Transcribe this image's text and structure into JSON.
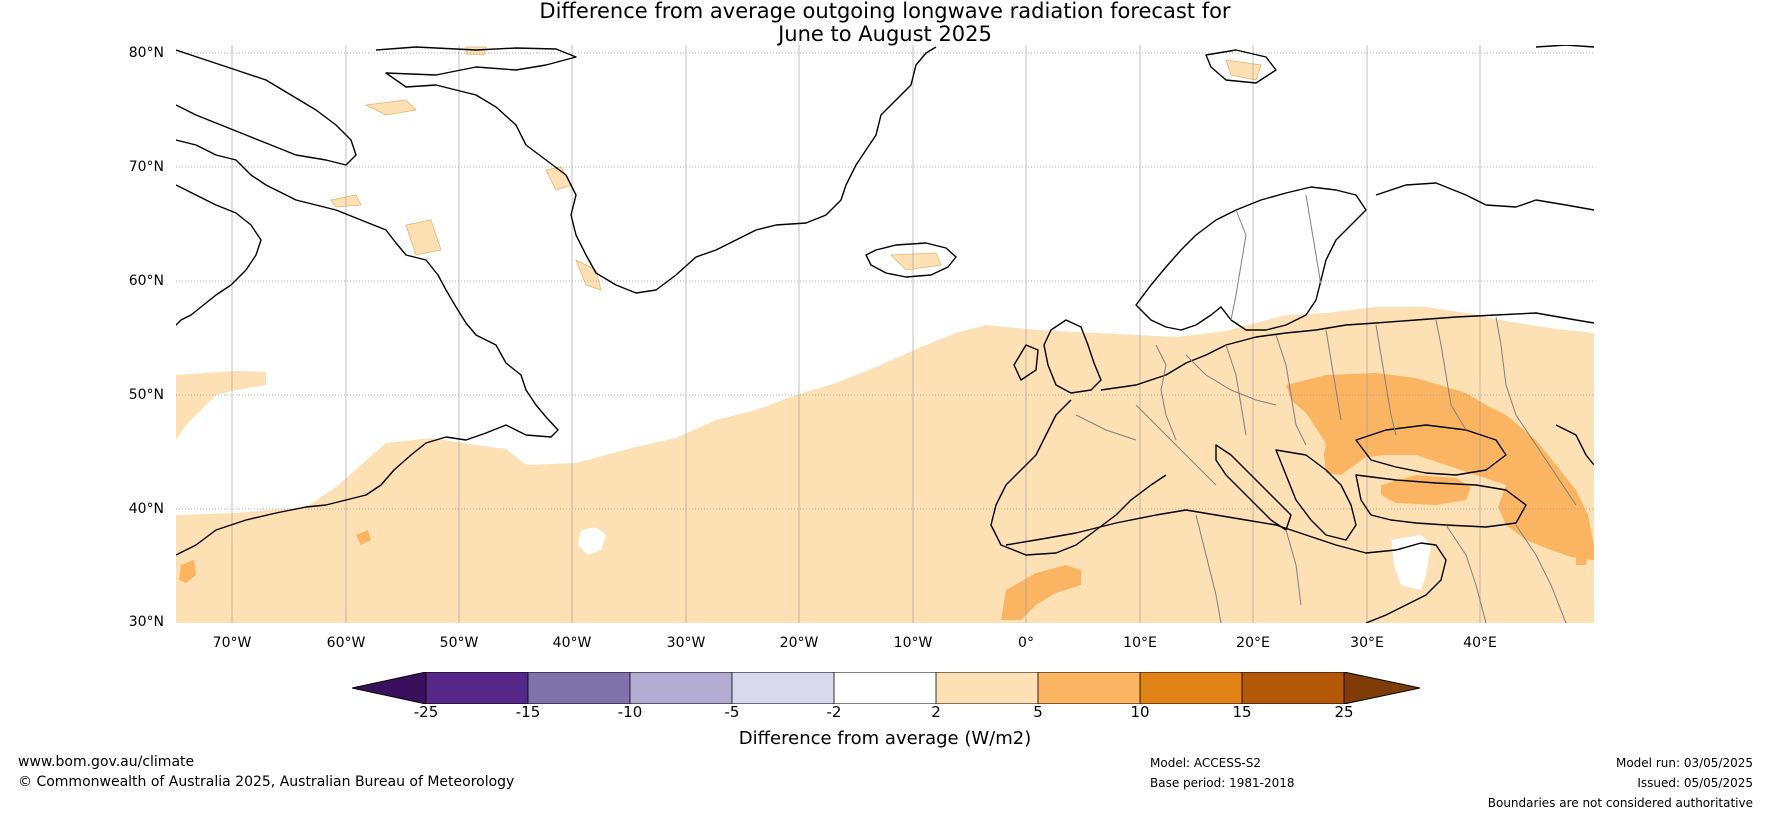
{
  "title": {
    "line1": "Difference from average outgoing longwave radiation forecast for",
    "line2": "June to August 2025"
  },
  "map": {
    "lon_range": [
      -75,
      50
    ],
    "lat_range": [
      30,
      81
    ],
    "lat_labels": [
      "80°N",
      "70°N",
      "60°N",
      "50°N",
      "40°N",
      "30°N"
    ],
    "lon_labels": [
      "70°W",
      "60°W",
      "50°W",
      "40°W",
      "30°W",
      "20°W",
      "10°W",
      "0°",
      "10°E",
      "20°E",
      "30°E",
      "40°E"
    ],
    "colors": {
      "land_outline": "#000000",
      "border": "#808080",
      "grid": "#888888",
      "anomaly_2_5": "#fde0b3",
      "anomaly_5_10": "#fbb562"
    }
  },
  "colorbar": {
    "ticks": [
      "-25",
      "-15",
      "-10",
      "-5",
      "-2",
      "2",
      "5",
      "10",
      "15",
      "25"
    ],
    "colors": [
      "#3a0f5c",
      "#542788",
      "#8073ac",
      "#b2abd2",
      "#d8daeb",
      "#ffffff",
      "#fde0b3",
      "#fbb562",
      "#e08214",
      "#b35806",
      "#7f3b08"
    ],
    "label": "Difference from average (W/m2)"
  },
  "footer": {
    "url": "www.bom.gov.au/climate",
    "copyright": "© Commonwealth of Australia 2025, Australian Bureau of Meteorology",
    "model": "Model: ACCESS-S2",
    "base_period": "Base period: 1981-2018",
    "model_run": "Model run: 03/05/2025",
    "issued": "Issued: 05/05/2025",
    "disclaimer": "Boundaries are not considered authoritative"
  }
}
